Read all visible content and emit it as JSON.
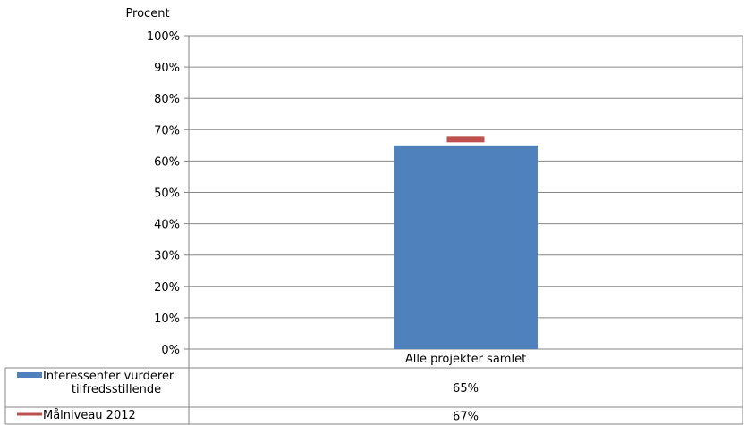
{
  "chart_data": {
    "type": "bar",
    "ylabel": "Procent",
    "categories": [
      "Alle projekter samlet"
    ],
    "ylim": [
      0,
      100
    ],
    "yticks": [
      "0%",
      "10%",
      "20%",
      "30%",
      "40%",
      "50%",
      "60%",
      "70%",
      "80%",
      "90%",
      "100%"
    ],
    "grid": true,
    "legend_placement": "data-table-left",
    "series": [
      {
        "name": "Interessenter vurderer tilfredsstillende",
        "name_lines": [
          "Interessenter vurderer",
          "tilfredsstillende"
        ],
        "kind": "bar",
        "color": "#4F81BD",
        "values": [
          65
        ],
        "value_labels": [
          "65%"
        ]
      },
      {
        "name": "Målniveau 2012",
        "kind": "target-marker",
        "color": "#C0504D",
        "values": [
          67
        ],
        "value_labels": [
          "67%"
        ]
      }
    ]
  }
}
